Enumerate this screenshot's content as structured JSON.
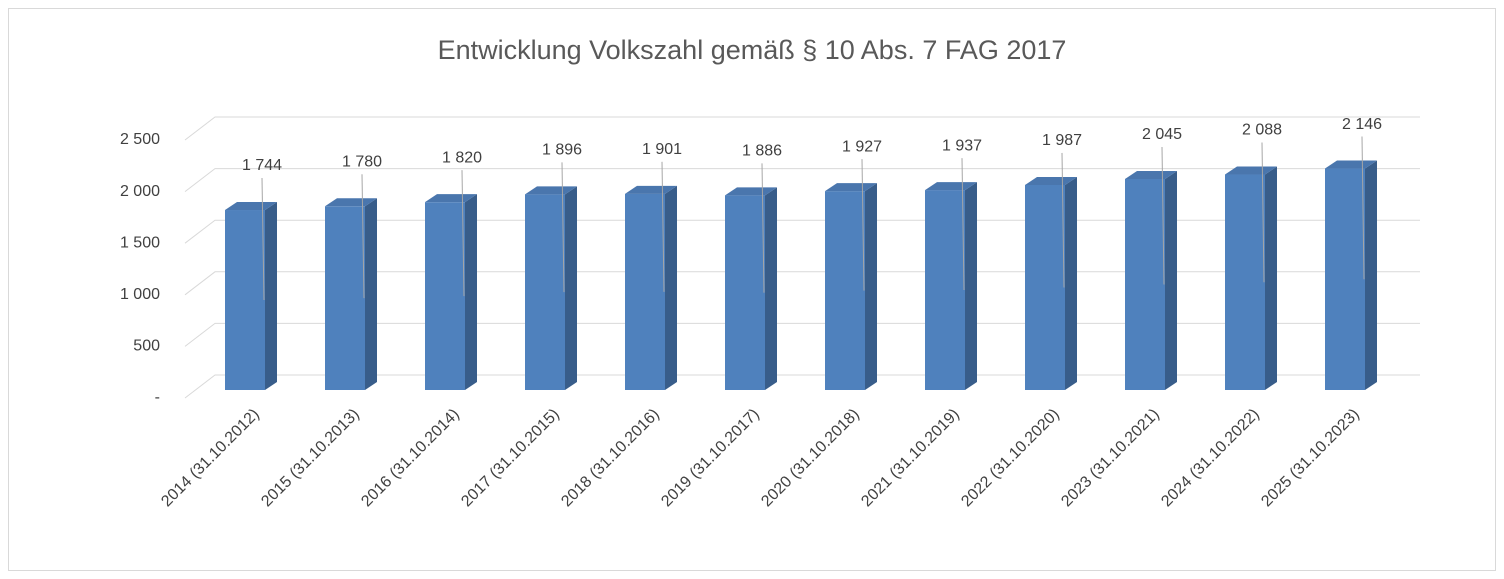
{
  "chart_data": {
    "type": "bar",
    "title": "Entwicklung Volkszahl gemäß § 10 Abs. 7 FAG 2017",
    "categories": [
      "2014 (31.10.2012)",
      "2015 (31.10.2013)",
      "2016 (31.10.2014)",
      "2017 (31.10.2015)",
      "2018 (31.10.2016)",
      "2019 (31.10.2017)",
      "2020 (31.10.2018)",
      "2021 (31.10.2019)",
      "2022 (31.10.2020)",
      "2023 (31.10.2021)",
      "2024 (31.10.2022)",
      "2025 (31.10.2023)"
    ],
    "values": [
      1744,
      1780,
      1820,
      1896,
      1901,
      1886,
      1927,
      1937,
      1987,
      2045,
      2088,
      2146
    ],
    "value_labels": [
      "1 744",
      "1 780",
      "1 820",
      "1 896",
      "1 901",
      "1 886",
      "1 927",
      "1 937",
      "1 987",
      "2 045",
      "2 088",
      "2 146"
    ],
    "color": "#4f81bd",
    "ylim": [
      0,
      2500
    ],
    "yticks": [
      {
        "value": 0,
        "label": "-"
      },
      500,
      {
        "value": 1000,
        "label": "1 000"
      },
      {
        "value": 1500,
        "label": "1 500"
      },
      {
        "value": 2000,
        "label": "2 000"
      },
      {
        "value": 2500,
        "label": "2 500"
      }
    ],
    "grid": true
  }
}
